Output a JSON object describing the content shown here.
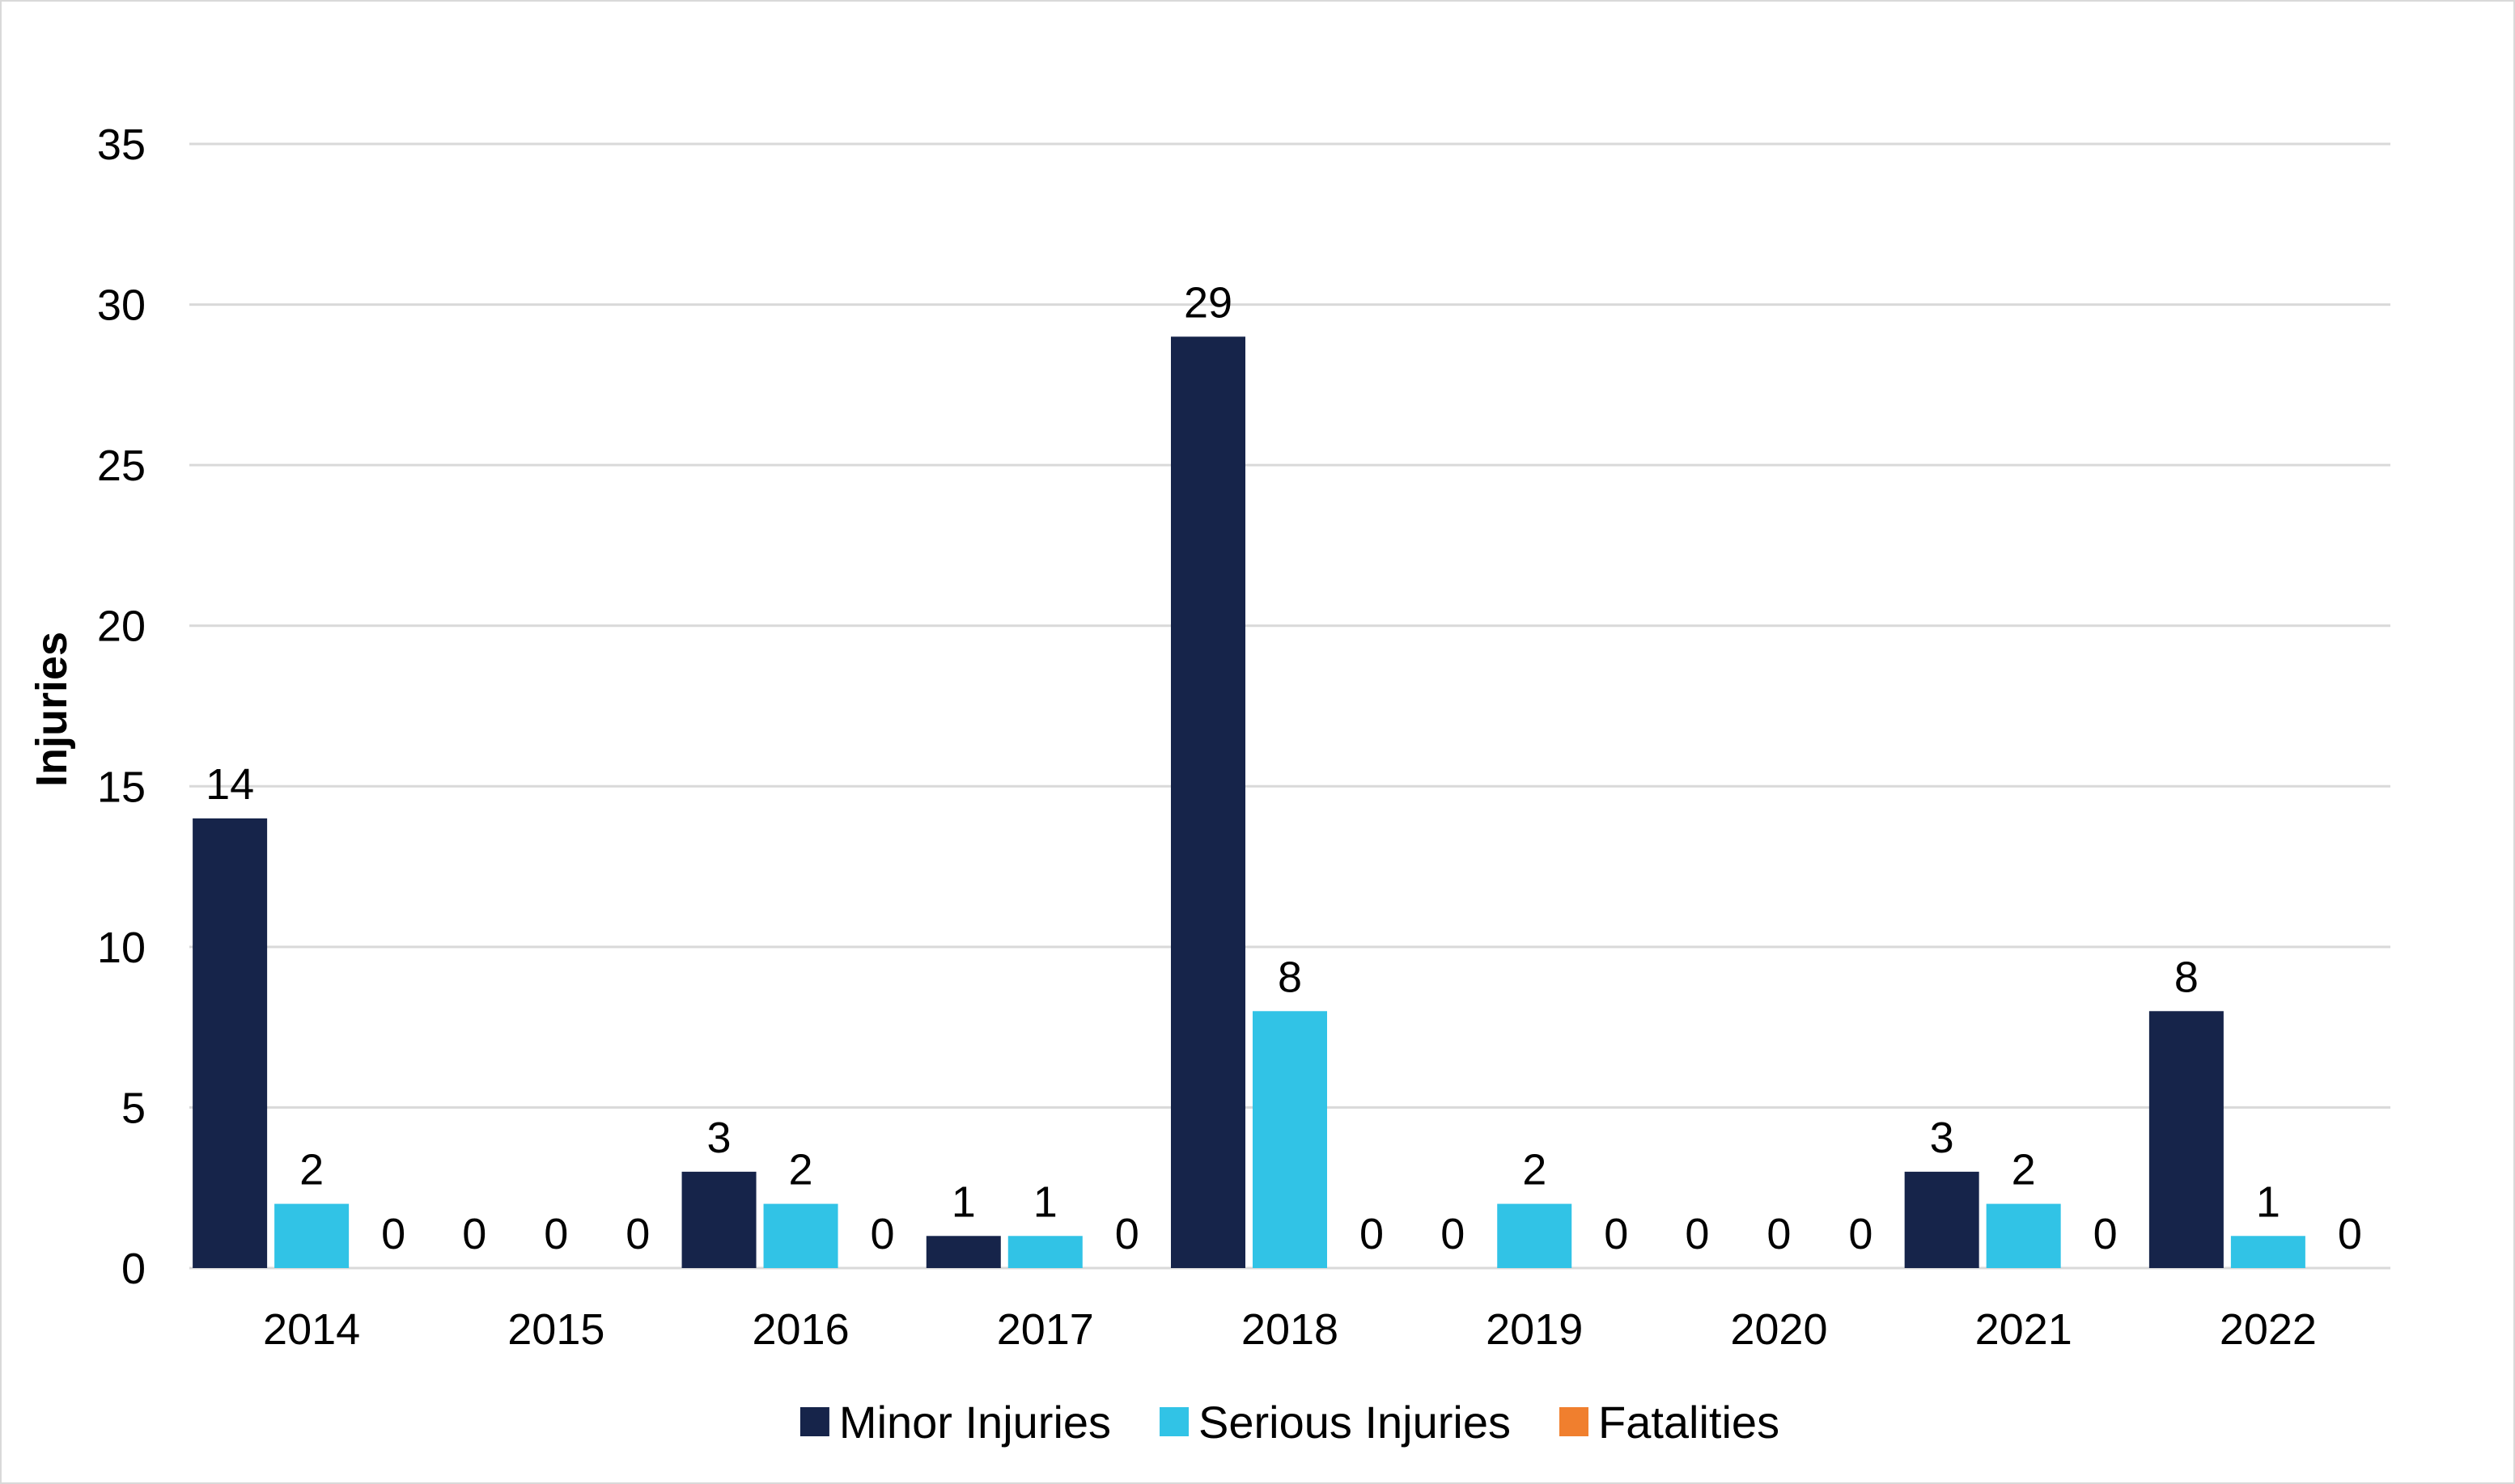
{
  "chart_data": {
    "type": "bar",
    "title": "",
    "xlabel": "",
    "ylabel": "Injuries",
    "ylim": [
      0,
      35
    ],
    "yticks": [
      0,
      5,
      10,
      15,
      20,
      25,
      30,
      35
    ],
    "grid": true,
    "legend": "bottom",
    "categories": [
      "2014",
      "2015",
      "2016",
      "2017",
      "2018",
      "2019",
      "2020",
      "2021",
      "2022"
    ],
    "series": [
      {
        "name": "Minor Injuries",
        "color": "#16244a",
        "values": [
          14,
          0,
          3,
          1,
          29,
          0,
          0,
          3,
          8
        ]
      },
      {
        "name": "Serious Injuries",
        "color": "#31c3e6",
        "values": [
          2,
          0,
          2,
          1,
          8,
          2,
          0,
          2,
          1
        ]
      },
      {
        "name": "Fatalities",
        "color": "#f07f2e",
        "values": [
          0,
          0,
          0,
          0,
          0,
          0,
          0,
          0,
          0
        ]
      }
    ]
  }
}
